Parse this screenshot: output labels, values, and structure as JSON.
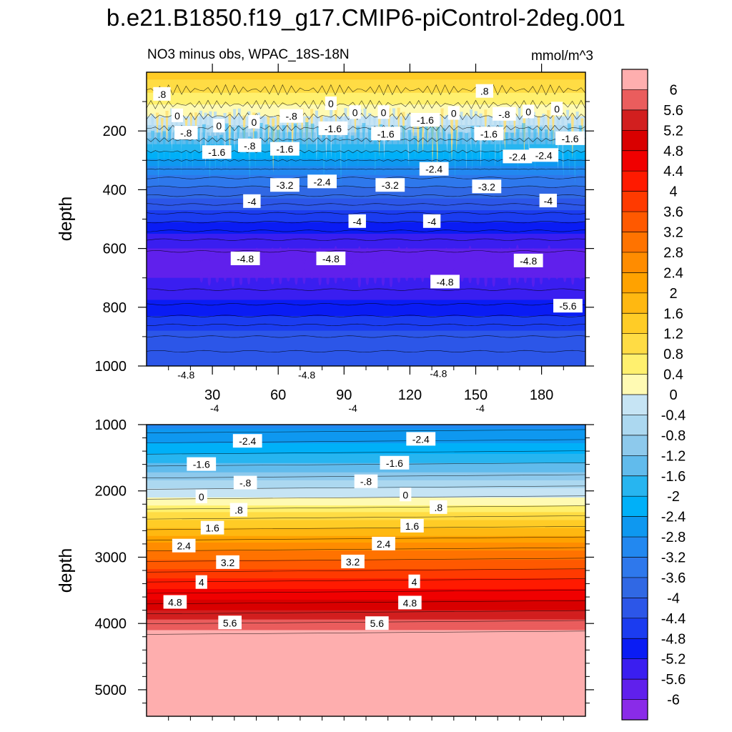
{
  "title": "b.e21.B1850.f19_g17.CMIP6-piControl-2deg.001",
  "subtitle": "NO3 minus obs, WPAC_18S-18N",
  "units": "mmol/m^3",
  "chart_data": [
    {
      "type": "heatmap",
      "panel": "upper",
      "xlabel": "",
      "ylabel": "depth",
      "xlim": [
        0,
        200
      ],
      "ylim": [
        1000,
        0
      ],
      "xticks": [
        30,
        60,
        90,
        120,
        150,
        180
      ],
      "yticks": [
        200,
        400,
        600,
        800,
        1000
      ],
      "contour_labels": [
        {
          "text": ".8",
          "x": 7,
          "y": 75
        },
        {
          "text": ".8",
          "x": 154,
          "y": 65
        },
        {
          "text": "0",
          "x": 14,
          "y": 148
        },
        {
          "text": "0",
          "x": 33,
          "y": 183
        },
        {
          "text": "0",
          "x": 49,
          "y": 170
        },
        {
          "text": "-.8",
          "x": 66,
          "y": 150
        },
        {
          "text": "0",
          "x": 84,
          "y": 107
        },
        {
          "text": "0",
          "x": 95,
          "y": 137
        },
        {
          "text": "0",
          "x": 108,
          "y": 137
        },
        {
          "text": "0",
          "x": 140,
          "y": 140
        },
        {
          "text": "-.8",
          "x": 163,
          "y": 143
        },
        {
          "text": "0",
          "x": 174,
          "y": 135
        },
        {
          "text": "0",
          "x": 187,
          "y": 125
        },
        {
          "text": "-.8",
          "x": 18,
          "y": 207
        },
        {
          "text": "-1.6",
          "x": 32,
          "y": 273
        },
        {
          "text": "-.8",
          "x": 47,
          "y": 250
        },
        {
          "text": "-1.6",
          "x": 63,
          "y": 262
        },
        {
          "text": "-1.6",
          "x": 85,
          "y": 192
        },
        {
          "text": "-1.6",
          "x": 109,
          "y": 210
        },
        {
          "text": "-1.6",
          "x": 127,
          "y": 163
        },
        {
          "text": "-1.6",
          "x": 156,
          "y": 210
        },
        {
          "text": "-2.4",
          "x": 169,
          "y": 288
        },
        {
          "text": "-2.4",
          "x": 181,
          "y": 283
        },
        {
          "text": "-1.6",
          "x": 193,
          "y": 226
        },
        {
          "text": "-3.2",
          "x": 63,
          "y": 385
        },
        {
          "text": "-2.4",
          "x": 80,
          "y": 373
        },
        {
          "text": "-3.2",
          "x": 111,
          "y": 385
        },
        {
          "text": "-2.4",
          "x": 131,
          "y": 330
        },
        {
          "text": "-3.2",
          "x": 155,
          "y": 390
        },
        {
          "text": "-4",
          "x": 48,
          "y": 440
        },
        {
          "text": "-4",
          "x": 96,
          "y": 508
        },
        {
          "text": "-4",
          "x": 130,
          "y": 508
        },
        {
          "text": "-4",
          "x": 183,
          "y": 438
        },
        {
          "text": "-4.8",
          "x": 45,
          "y": 635
        },
        {
          "text": "-4.8",
          "x": 84,
          "y": 635
        },
        {
          "text": "-4.8",
          "x": 136,
          "y": 714
        },
        {
          "text": "-4.8",
          "x": 174,
          "y": 642
        },
        {
          "text": "-5.6",
          "x": 192,
          "y": 796
        },
        {
          "text": "-4.8",
          "x": 18,
          "y": 1030
        },
        {
          "text": "-4.8",
          "x": 73,
          "y": 1030
        },
        {
          "text": "-4.8",
          "x": 133,
          "y": 1025
        },
        {
          "text": "-4",
          "x": 31,
          "y": 1143
        },
        {
          "text": "-4",
          "x": 94,
          "y": 1143
        },
        {
          "text": "-4",
          "x": 152,
          "y": 1143
        }
      ]
    },
    {
      "type": "heatmap",
      "panel": "lower",
      "xlabel": "",
      "ylabel": "depth",
      "xlim": [
        0,
        200
      ],
      "ylim": [
        1000,
        5400
      ],
      "yticks": [
        1000,
        2000,
        3000,
        4000,
        5000
      ],
      "contour_labels": [
        {
          "text": "-2.4",
          "x": 46,
          "y": 1250
        },
        {
          "text": "-2.4",
          "x": 125,
          "y": 1220
        },
        {
          "text": "-1.6",
          "x": 25,
          "y": 1600
        },
        {
          "text": "-1.6",
          "x": 113,
          "y": 1580
        },
        {
          "text": "-.8",
          "x": 45,
          "y": 1880
        },
        {
          "text": "-.8",
          "x": 100,
          "y": 1860
        },
        {
          "text": "0",
          "x": 25,
          "y": 2090
        },
        {
          "text": "0",
          "x": 118,
          "y": 2060
        },
        {
          "text": ".8",
          "x": 42,
          "y": 2290
        },
        {
          "text": ".8",
          "x": 133,
          "y": 2250
        },
        {
          "text": "1.6",
          "x": 30,
          "y": 2560
        },
        {
          "text": "1.6",
          "x": 121,
          "y": 2530
        },
        {
          "text": "2.4",
          "x": 17,
          "y": 2830
        },
        {
          "text": "2.4",
          "x": 108,
          "y": 2800
        },
        {
          "text": "3.2",
          "x": 37,
          "y": 3080
        },
        {
          "text": "3.2",
          "x": 94,
          "y": 3070
        },
        {
          "text": "4",
          "x": 25,
          "y": 3380
        },
        {
          "text": "4",
          "x": 122,
          "y": 3370
        },
        {
          "text": "4.8",
          "x": 13,
          "y": 3680
        },
        {
          "text": "4.8",
          "x": 120,
          "y": 3690
        },
        {
          "text": "5.6",
          "x": 38,
          "y": 3990
        },
        {
          "text": "5.6",
          "x": 105,
          "y": 4000
        }
      ]
    },
    {
      "type": "colorbar",
      "labels": [
        "6",
        "5.6",
        "5.2",
        "4.8",
        "4.4",
        "4",
        "3.6",
        "3.2",
        "2.8",
        "2.4",
        "2",
        "1.6",
        "1.2",
        "0.8",
        "0.4",
        "0",
        "-0.4",
        "-0.8",
        "-1.2",
        "-1.6",
        "-2",
        "-2.4",
        "-2.8",
        "-3.2",
        "-3.6",
        "-4",
        "-4.4",
        "-4.8",
        "-5.2",
        "-5.6",
        "-6"
      ],
      "colors": [
        "#feaeae",
        "#ea5d5d",
        "#d21f1f",
        "#d90000",
        "#f00000",
        "#ff1a00",
        "#ff3a00",
        "#ff5900",
        "#ff7300",
        "#ff8c00",
        "#ffa200",
        "#ffb811",
        "#ffcc26",
        "#ffdc44",
        "#fff06e",
        "#fffab3",
        "#c6e4f4",
        "#acd8f0",
        "#8dc9ec",
        "#61bbec",
        "#27b5f0",
        "#00b0f8",
        "#0e98f0",
        "#2288f0",
        "#2e78ec",
        "#3068e4",
        "#2c56e8",
        "#1b3cf0",
        "#0a1cf4",
        "#3a1ef0",
        "#6020ec",
        "#8a2be8"
      ]
    }
  ]
}
